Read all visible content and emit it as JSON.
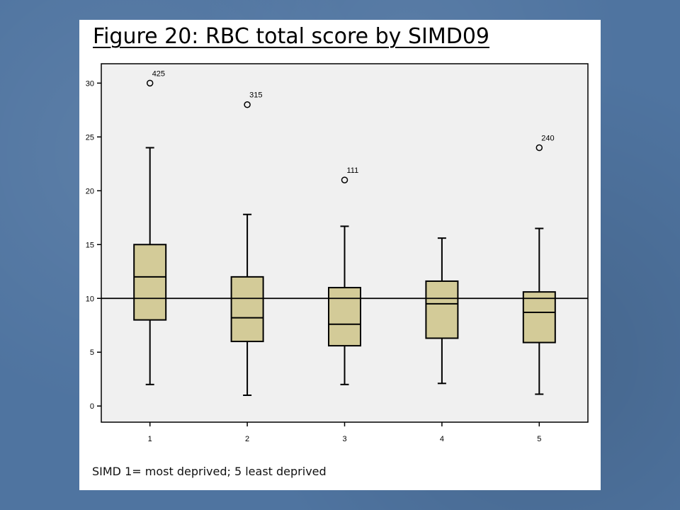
{
  "slide": {
    "title": "Figure 20: RBC total score by SIMD09",
    "caption": "SIMD 1= most deprived; 5 least deprived"
  },
  "chart_data": {
    "type": "boxplot",
    "title": "",
    "xlabel": "",
    "ylabel": "",
    "categories": [
      "1",
      "2",
      "3",
      "4",
      "5"
    ],
    "ylim": [
      -1.5,
      31.8
    ],
    "yticks": [
      0,
      5,
      10,
      15,
      20,
      25,
      30
    ],
    "reference_line": 10,
    "box_color": "#d3cb98",
    "plot_background": "#f0f0f0",
    "boxes": [
      {
        "category": "1",
        "whisker_low": 2,
        "q1": 8,
        "median": 12,
        "q3": 15,
        "whisker_high": 24
      },
      {
        "category": "2",
        "whisker_low": 1,
        "q1": 6,
        "median": 8.2,
        "q3": 12,
        "whisker_high": 17.8
      },
      {
        "category": "3",
        "whisker_low": 2,
        "q1": 5.6,
        "median": 7.6,
        "q3": 11,
        "whisker_high": 16.7
      },
      {
        "category": "4",
        "whisker_low": 2.1,
        "q1": 6.3,
        "median": 9.5,
        "q3": 11.6,
        "whisker_high": 15.6
      },
      {
        "category": "5",
        "whisker_low": 1.1,
        "q1": 5.9,
        "median": 8.7,
        "q3": 10.6,
        "whisker_high": 16.5
      }
    ],
    "outliers": [
      {
        "category": "1",
        "value": 30,
        "label": "425"
      },
      {
        "category": "2",
        "value": 28,
        "label": "315"
      },
      {
        "category": "3",
        "value": 21,
        "label": "111"
      },
      {
        "category": "5",
        "value": 24,
        "label": "240"
      }
    ]
  }
}
